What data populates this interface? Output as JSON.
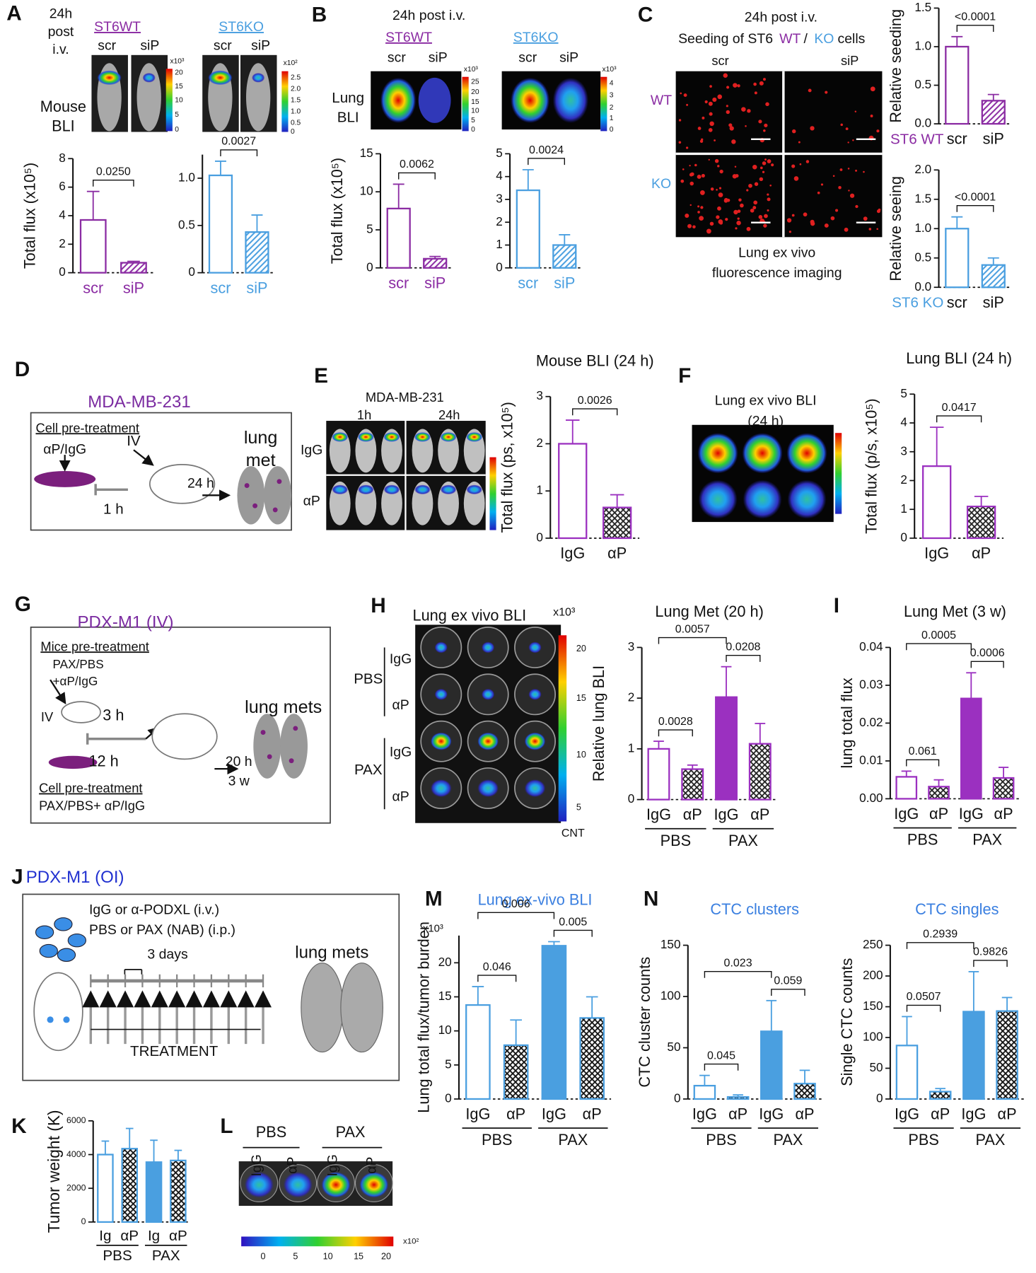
{
  "chart_data": [
    {
      "type": "bar",
      "ylabel": "Total flux (x10⁵)",
      "categories": [
        "scr",
        "siP"
      ],
      "values": [
        3.7,
        0.7
      ],
      "errors": [
        2.0,
        0.1
      ],
      "colors": [
        "#8b2ca3",
        "#8b2ca3"
      ],
      "styles": [
        "open",
        "hatch"
      ],
      "label_color": "#8b2ca3",
      "ylim": [
        0,
        8
      ],
      "yticks": [
        0,
        2,
        4,
        6,
        8
      ],
      "comparisons": [
        {
          "between": [
            0,
            1
          ],
          "label": "0.0250"
        }
      ]
    },
    {
      "type": "bar",
      "categories": [
        "scr",
        "siP"
      ],
      "values": [
        1.03,
        0.43
      ],
      "errors": [
        0.15,
        0.18
      ],
      "colors": [
        "#4a9fe0",
        "#4a9fe0"
      ],
      "styles": [
        "open",
        "hatch"
      ],
      "label_color": "#4a9fe0",
      "ylim": [
        0,
        1.25
      ],
      "yticks": [
        0,
        0.5,
        {
          "value": 1,
          "label": "1.0"
        }
      ],
      "comparisons": [
        {
          "between": [
            0,
            1
          ],
          "label": "0.0027"
        }
      ]
    },
    {
      "type": "bar",
      "ylabel": "Total flux (x10⁵)",
      "categories": [
        "scr",
        "siP"
      ],
      "values": [
        7.8,
        1.2
      ],
      "errors": [
        3.2,
        0.3
      ],
      "colors": [
        "#8b2ca3",
        "#8b2ca3"
      ],
      "styles": [
        "open",
        "hatch"
      ],
      "label_color": "#8b2ca3",
      "ylim": [
        0,
        15
      ],
      "yticks": [
        0,
        5,
        10,
        15
      ],
      "comparisons": [
        {
          "between": [
            0,
            1
          ],
          "label": "0.0062"
        }
      ]
    },
    {
      "type": "bar",
      "categories": [
        "scr",
        "siP"
      ],
      "values": [
        3.4,
        1.0
      ],
      "errors": [
        0.9,
        0.45
      ],
      "colors": [
        "#4a9fe0",
        "#4a9fe0"
      ],
      "styles": [
        "open",
        "hatch"
      ],
      "label_color": "#4a9fe0",
      "ylim": [
        0,
        5
      ],
      "yticks": [
        0,
        1,
        2,
        3,
        4,
        5
      ],
      "comparisons": [
        {
          "between": [
            0,
            1
          ],
          "label": "0.0024"
        }
      ]
    },
    {
      "type": "bar",
      "ylabel": "Relative seeding",
      "xgroup": "ST6 WT",
      "xgroup_color": "#8b2ca3",
      "categories": [
        "scr",
        "siP"
      ],
      "values": [
        1.0,
        0.3
      ],
      "errors": [
        0.13,
        0.08
      ],
      "colors": [
        "#8b2ca3",
        "#8b2ca3"
      ],
      "styles": [
        "open",
        "hatch"
      ],
      "ylim": [
        0,
        1.5
      ],
      "yticks": [
        {
          "value": 0,
          "label": "0.0"
        },
        0.5,
        {
          "value": 1,
          "label": "1.0"
        },
        1.5
      ],
      "comparisons": [
        {
          "between": [
            0,
            1
          ],
          "label": "<0.0001"
        }
      ]
    },
    {
      "type": "bar",
      "ylabel": "Relative seeing",
      "xgroup": "ST6 KO",
      "xgroup_color": "#4a9fe0",
      "categories": [
        "scr",
        "siP"
      ],
      "values": [
        1.0,
        0.38
      ],
      "errors": [
        0.2,
        0.12
      ],
      "colors": [
        "#4a9fe0",
        "#4a9fe0"
      ],
      "styles": [
        "open",
        "hatch"
      ],
      "ylim": [
        0,
        2
      ],
      "yticks": [
        {
          "value": 0,
          "label": "0.0"
        },
        0.5,
        {
          "value": 1,
          "label": "1.0"
        },
        1.5,
        {
          "value": 2,
          "label": "2.0"
        }
      ],
      "comparisons": [
        {
          "between": [
            0,
            1
          ],
          "label": "<0.0001"
        }
      ]
    },
    {
      "type": "bar",
      "title": "Mouse BLI (24 h)",
      "ylabel": "Total flux (ps, x10⁵)",
      "categories": [
        "IgG",
        "αP"
      ],
      "values": [
        2.0,
        0.65
      ],
      "errors": [
        0.5,
        0.27
      ],
      "colors": [
        "#9b30c0",
        "#9b30c0"
      ],
      "styles": [
        "open",
        "check"
      ],
      "ylim": [
        0,
        3
      ],
      "yticks": [
        0,
        1,
        2,
        3
      ],
      "comparisons": [
        {
          "between": [
            0,
            1
          ],
          "label": "0.0026"
        }
      ]
    },
    {
      "type": "bar",
      "title": "Lung BLI (24 h)",
      "ylabel": "Total flux (p/s, x10⁵)",
      "categories": [
        "IgG",
        "αP"
      ],
      "values": [
        2.5,
        1.1
      ],
      "errors": [
        1.35,
        0.35
      ],
      "colors": [
        "#9b30c0",
        "#9b30c0"
      ],
      "styles": [
        "open",
        "check"
      ],
      "ylim": [
        0,
        5
      ],
      "yticks": [
        0,
        1,
        2,
        3,
        4,
        5
      ],
      "comparisons": [
        {
          "between": [
            0,
            1
          ],
          "label": "0.0417"
        }
      ]
    },
    {
      "type": "bar",
      "title": "Lung Met (20 h)",
      "ylabel": "Relative lung BLI",
      "categories": [
        "IgG",
        "αP",
        "IgG",
        "αP"
      ],
      "groups": [
        "PBS",
        "PAX"
      ],
      "values": [
        1.0,
        0.6,
        2.02,
        1.1
      ],
      "errors": [
        0.15,
        0.08,
        0.6,
        0.4
      ],
      "colors": [
        "#9b30c0",
        "#9b30c0",
        "#9b30c0",
        "#9b30c0"
      ],
      "styles": [
        "open",
        "check",
        "solid",
        "check"
      ],
      "ylim": [
        0,
        3
      ],
      "yticks": [
        0,
        1,
        2,
        3
      ],
      "comparisons": [
        {
          "between": [
            0,
            1
          ],
          "label": "0.0028"
        },
        {
          "between": [
            0,
            2
          ],
          "label": "0.0057"
        },
        {
          "between": [
            2,
            3
          ],
          "label": "0.0208"
        }
      ]
    },
    {
      "type": "bar",
      "title": "Lung Met (3 w)",
      "ylabel": "lung total flux",
      "categories": [
        "IgG",
        "αP",
        "IgG",
        "αP"
      ],
      "groups": [
        "PBS",
        "PAX"
      ],
      "values": [
        0.0058,
        0.0032,
        0.0265,
        0.0055
      ],
      "errors": [
        0.0015,
        0.0018,
        0.0068,
        0.0028
      ],
      "colors": [
        "#9b30c0",
        "#9b30c0",
        "#9b30c0",
        "#9b30c0"
      ],
      "styles": [
        "open",
        "check",
        "solid",
        "check"
      ],
      "ylim": [
        0,
        0.04
      ],
      "yticks": [
        {
          "value": 0,
          "label": "0.00"
        },
        0.01,
        0.02,
        0.03,
        0.04
      ],
      "comparisons": [
        {
          "between": [
            0,
            1
          ],
          "label": "0.061"
        },
        {
          "between": [
            0,
            2
          ],
          "label": "0.0005"
        },
        {
          "between": [
            2,
            3
          ],
          "label": "0.0006"
        }
      ]
    },
    {
      "type": "bar",
      "title": "Lung ex-vivo  BLI",
      "title_color": "#3a7fe0",
      "unit": "x10³",
      "ylabel": "Lung total flux/tumor burden",
      "categories": [
        "IgG",
        "αP",
        "IgG",
        "αP"
      ],
      "groups": [
        "PBS",
        "PAX"
      ],
      "values": [
        13.8,
        7.9,
        22.5,
        11.9
      ],
      "errors": [
        2.7,
        3.7,
        0.6,
        3.1
      ],
      "colors": [
        "#4a9fe0",
        "#4a9fe0",
        "#4a9fe0",
        "#4a9fe0"
      ],
      "styles": [
        "open",
        "check",
        "solid",
        "check"
      ],
      "ylim": [
        0,
        24
      ],
      "yticks": [
        0,
        5,
        10,
        15,
        20
      ],
      "comparisons": [
        {
          "between": [
            0,
            1
          ],
          "label": "0.046"
        },
        {
          "between": [
            0,
            2
          ],
          "label": "0.006"
        },
        {
          "between": [
            2,
            3
          ],
          "label": "0.005"
        }
      ]
    },
    {
      "type": "bar",
      "title": "CTC clusters",
      "title_color": "#3a7fe0",
      "ylabel": "CTC cluster counts",
      "categories": [
        "IgG",
        "αP",
        "IgG",
        "αP"
      ],
      "groups": [
        "PBS",
        "PAX"
      ],
      "values": [
        13,
        2,
        66,
        15
      ],
      "errors": [
        10,
        2,
        30,
        13
      ],
      "colors": [
        "#4a9fe0",
        "#4a9fe0",
        "#4a9fe0",
        "#4a9fe0"
      ],
      "styles": [
        "open",
        "check",
        "solid",
        "check"
      ],
      "ylim": [
        0,
        150
      ],
      "yticks": [
        0,
        50,
        100,
        150
      ],
      "comparisons": [
        {
          "between": [
            0,
            1
          ],
          "label": "0.045"
        },
        {
          "between": [
            0,
            2
          ],
          "label": "0.023"
        },
        {
          "between": [
            2,
            3
          ],
          "label": "0.059"
        }
      ]
    },
    {
      "type": "bar",
      "title": "CTC singles",
      "title_color": "#3a7fe0",
      "ylabel": "Single CTC counts",
      "categories": [
        "IgG",
        "αP",
        "IgG",
        "αP"
      ],
      "groups": [
        "PBS",
        "PAX"
      ],
      "values": [
        87,
        12,
        142,
        143
      ],
      "errors": [
        47,
        5,
        65,
        22
      ],
      "colors": [
        "#4a9fe0",
        "#4a9fe0",
        "#4a9fe0",
        "#4a9fe0"
      ],
      "styles": [
        "open",
        "check",
        "solid",
        "check"
      ],
      "ylim": [
        0,
        250
      ],
      "yticks": [
        0,
        50,
        100,
        150,
        200,
        250
      ],
      "comparisons": [
        {
          "between": [
            0,
            1
          ],
          "label": "0.0507"
        },
        {
          "between": [
            0,
            2
          ],
          "label": "0.2939"
        },
        {
          "between": [
            2,
            3
          ],
          "label": "0.9826"
        }
      ]
    },
    {
      "type": "bar",
      "ylabel": "Tumor weight (K)",
      "categories": [
        "Ig",
        "αP",
        "Ig",
        "αP"
      ],
      "groups": [
        "PBS",
        "PAX"
      ],
      "values": [
        4000,
        4350,
        3550,
        3650
      ],
      "errors": [
        800,
        1200,
        1300,
        600
      ],
      "colors": [
        "#4a9fe0",
        "#4a9fe0",
        "#4a9fe0",
        "#4a9fe0"
      ],
      "styles": [
        "open",
        "check",
        "solid",
        "check"
      ],
      "ylim": [
        0,
        6000
      ],
      "yticks": [
        0,
        2000,
        4000,
        6000
      ]
    }
  ],
  "figure": {
    "texts": [
      "A",
      "B",
      "C",
      "D",
      "E",
      "F",
      "G",
      "H",
      "I",
      "J",
      "K",
      "L",
      "M",
      "N",
      "24h",
      "post",
      "i.v.",
      "Mouse",
      "BLI",
      "ST6WT",
      "scr",
      "siP",
      "ST6KO",
      "scr",
      "siP",
      "24h post i.v.",
      "ST6WT",
      "ST6KO",
      "scr",
      "siP",
      "scr",
      "siP",
      "Lung",
      "BLI",
      "24h post i.v.",
      "Seeding of ST6",
      "WT",
      "/",
      "KO",
      "cells",
      "scr",
      "siP",
      "WT",
      "KO",
      "Lung ex vivo",
      "fluorescence imaging",
      "MDA-MB-231",
      "Cell pre-treatment",
      "αP/IgG",
      "IV",
      "1 h",
      "24 h",
      "lung",
      "met",
      "MDA-MB-231",
      "1h",
      "24h",
      "IgG",
      "αP",
      "Lung ex vivo BLI",
      "(24 h)",
      "PDX-M1 (IV)",
      "Mice pre-treatment",
      "PAX/PBS",
      "+αP/IgG",
      "IV",
      "3 h",
      "12 h",
      "lung mets",
      "20 h",
      "3 w",
      "Cell pre-treatment",
      "PAX/PBS+ αP/IgG",
      "Lung ex vivo  BLI",
      "x10³",
      "PBS",
      "IgG",
      "αP",
      "PAX",
      "IgG",
      "αP",
      "CNT",
      "20",
      "15",
      "10",
      "5",
      "PDX-M1 (OI)",
      "IgG or α-PODXL (i.v.)",
      "PBS or PAX (NAB) (i.p.)",
      "3 days",
      "TREATMENT",
      "lung mets",
      "PBS",
      "PAX",
      "IgG",
      "αP",
      "IgG",
      "αP",
      "0",
      "5",
      "10",
      "15",
      "20",
      "x10²",
      "x10³",
      "20",
      "15",
      "10",
      "5",
      "0",
      "x10²",
      "2.5",
      "2.0",
      "1.5",
      "1.0",
      "0.5",
      "0",
      "x10³",
      "25",
      "20",
      "15",
      "10",
      "5",
      "0",
      "x10³",
      "4",
      "3",
      "2",
      "1",
      "0"
    ]
  }
}
